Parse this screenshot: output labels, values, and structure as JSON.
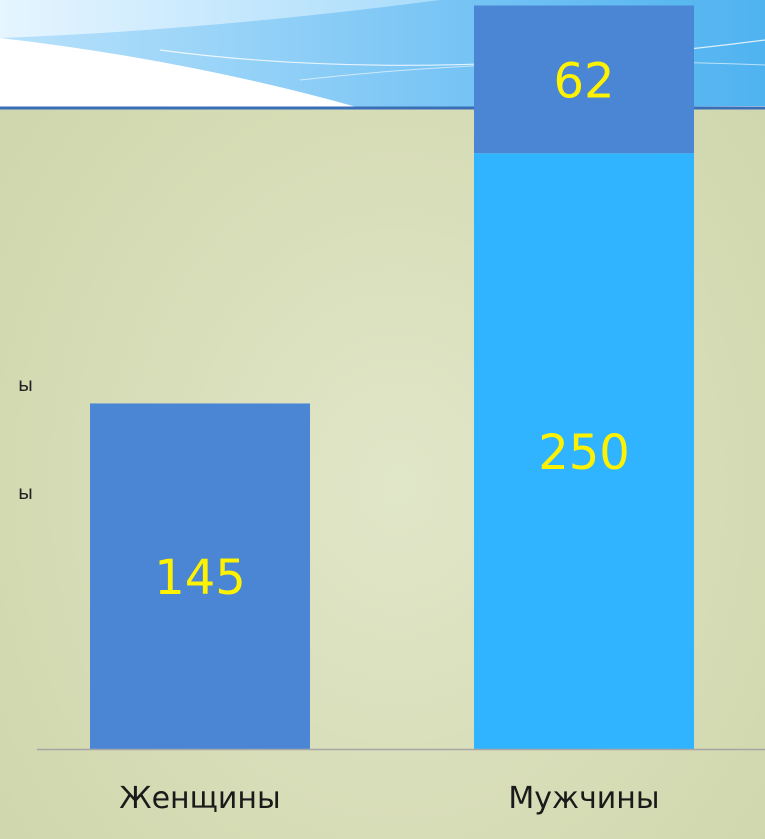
{
  "chart_data": {
    "type": "bar",
    "stacked": true,
    "categories": [
      "Женщины",
      "Мужчины"
    ],
    "series": [
      {
        "values": [
          145,
          250
        ],
        "colors": [
          "#4a86d4",
          "#31b4ff"
        ]
      },
      {
        "values": [
          0,
          62
        ],
        "colors": [
          "#4a86d4",
          "#4a86d4"
        ]
      }
    ],
    "data_label_color": "#fff200",
    "axis_line_color": "#a6a6a6",
    "legend": {
      "items": [
        "ы",
        "ы"
      ],
      "placement": "left (cropped)"
    }
  }
}
